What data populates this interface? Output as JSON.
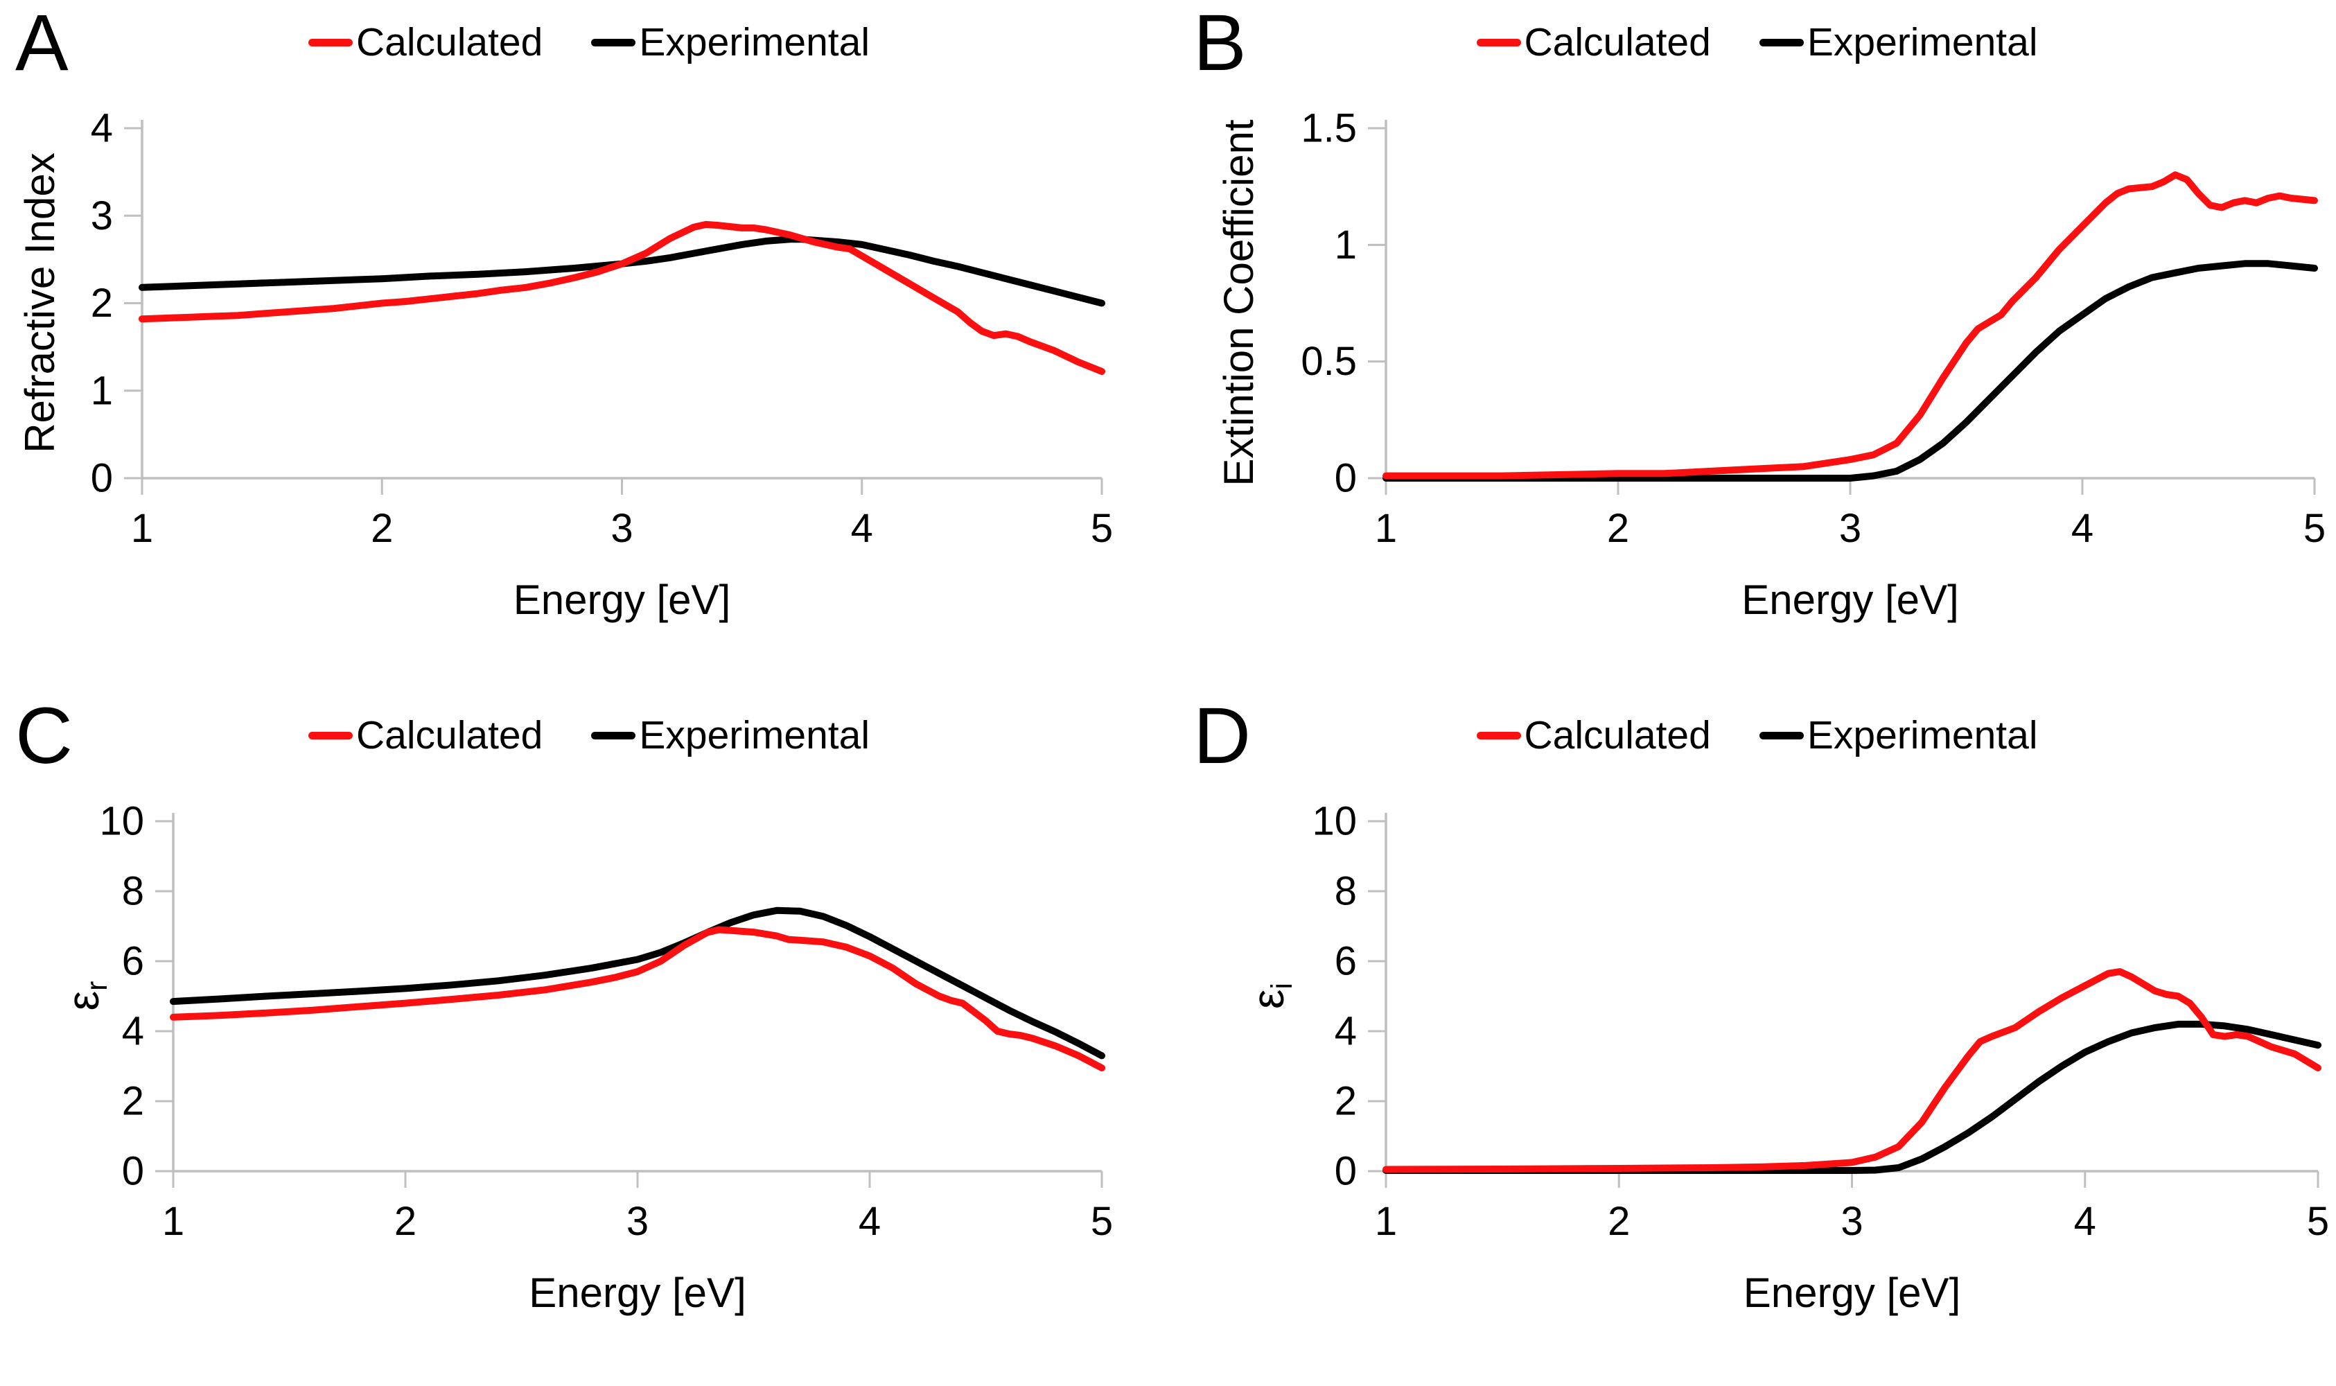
{
  "figure": {
    "legend": {
      "calculated": "Calculated",
      "experimental": "Experimental"
    },
    "colors": {
      "calculated": "#FA1010",
      "experimental": "#000000",
      "axis": "#BFBFBF",
      "text": "#000000"
    }
  },
  "chart_data": [
    {
      "panel_label": "A",
      "type": "line",
      "title": "",
      "xlabel": "Energy [eV]",
      "ylabel": "Refractive Index",
      "ylabel_sub": "",
      "xlim": [
        1,
        5
      ],
      "ylim": [
        0,
        4
      ],
      "xticks": [
        1,
        2,
        3,
        4,
        5
      ],
      "xtick_labels": [
        "1",
        "2",
        "3",
        "4",
        "5"
      ],
      "yticks": [
        0,
        1,
        2,
        3,
        4
      ],
      "ytick_labels": [
        "0",
        "1",
        "2",
        "3",
        "4"
      ],
      "grid": false,
      "legend_position": "top",
      "series": [
        {
          "name": "Calculated",
          "color": "#FA1010",
          "x": [
            1.0,
            1.1,
            1.2,
            1.3,
            1.4,
            1.5,
            1.6,
            1.7,
            1.8,
            1.9,
            2.0,
            2.1,
            2.2,
            2.3,
            2.4,
            2.5,
            2.6,
            2.7,
            2.8,
            2.9,
            3.0,
            3.1,
            3.2,
            3.3,
            3.35,
            3.4,
            3.5,
            3.55,
            3.6,
            3.7,
            3.8,
            3.9,
            3.95,
            4.0,
            4.1,
            4.2,
            4.3,
            4.4,
            4.45,
            4.5,
            4.55,
            4.6,
            4.65,
            4.7,
            4.8,
            4.9,
            5.0
          ],
          "y": [
            1.82,
            1.83,
            1.84,
            1.85,
            1.86,
            1.88,
            1.9,
            1.92,
            1.94,
            1.97,
            2.0,
            2.02,
            2.05,
            2.08,
            2.11,
            2.15,
            2.18,
            2.23,
            2.29,
            2.36,
            2.45,
            2.57,
            2.74,
            2.87,
            2.9,
            2.89,
            2.86,
            2.86,
            2.84,
            2.78,
            2.7,
            2.64,
            2.62,
            2.54,
            2.38,
            2.22,
            2.06,
            1.9,
            1.78,
            1.68,
            1.63,
            1.65,
            1.62,
            1.56,
            1.46,
            1.33,
            1.22
          ]
        },
        {
          "name": "Experimental",
          "color": "#000000",
          "x": [
            1.0,
            1.2,
            1.4,
            1.6,
            1.8,
            2.0,
            2.2,
            2.4,
            2.6,
            2.8,
            3.0,
            3.1,
            3.2,
            3.3,
            3.4,
            3.5,
            3.6,
            3.7,
            3.75,
            3.8,
            3.9,
            4.0,
            4.1,
            4.2,
            4.3,
            4.4,
            4.5,
            4.6,
            4.7,
            4.8,
            4.9,
            5.0
          ],
          "y": [
            2.18,
            2.2,
            2.22,
            2.24,
            2.26,
            2.28,
            2.31,
            2.33,
            2.36,
            2.4,
            2.45,
            2.48,
            2.52,
            2.57,
            2.62,
            2.67,
            2.71,
            2.73,
            2.73,
            2.72,
            2.7,
            2.67,
            2.61,
            2.55,
            2.48,
            2.42,
            2.35,
            2.28,
            2.21,
            2.14,
            2.07,
            2.0
          ]
        }
      ]
    },
    {
      "panel_label": "B",
      "type": "line",
      "title": "",
      "xlabel": "Energy [eV]",
      "ylabel": "Extintion Coefficient",
      "ylabel_sub": "",
      "xlim": [
        1,
        5
      ],
      "ylim": [
        0,
        1.5
      ],
      "xticks": [
        1,
        2,
        3,
        4,
        5
      ],
      "xtick_labels": [
        "1",
        "2",
        "3",
        "4",
        "5"
      ],
      "yticks": [
        0,
        0.5,
        1,
        1.5
      ],
      "ytick_labels": [
        "0",
        "0.5",
        "1",
        "1.5"
      ],
      "grid": false,
      "legend_position": "top",
      "series": [
        {
          "name": "Calculated",
          "color": "#FA1010",
          "x": [
            1.0,
            1.5,
            2.0,
            2.2,
            2.4,
            2.6,
            2.8,
            3.0,
            3.1,
            3.2,
            3.3,
            3.4,
            3.5,
            3.55,
            3.6,
            3.65,
            3.7,
            3.8,
            3.9,
            4.0,
            4.1,
            4.15,
            4.2,
            4.3,
            4.35,
            4.4,
            4.45,
            4.5,
            4.55,
            4.6,
            4.65,
            4.7,
            4.75,
            4.8,
            4.85,
            4.9,
            5.0
          ],
          "y": [
            0.01,
            0.01,
            0.02,
            0.02,
            0.03,
            0.04,
            0.05,
            0.08,
            0.1,
            0.15,
            0.27,
            0.43,
            0.58,
            0.64,
            0.67,
            0.7,
            0.76,
            0.86,
            0.98,
            1.08,
            1.18,
            1.22,
            1.24,
            1.25,
            1.27,
            1.3,
            1.28,
            1.22,
            1.17,
            1.16,
            1.18,
            1.19,
            1.18,
            1.2,
            1.21,
            1.2,
            1.19
          ]
        },
        {
          "name": "Experimental",
          "color": "#000000",
          "x": [
            1.0,
            1.5,
            2.0,
            2.5,
            2.8,
            3.0,
            3.1,
            3.2,
            3.3,
            3.4,
            3.5,
            3.6,
            3.7,
            3.8,
            3.9,
            4.0,
            4.1,
            4.2,
            4.3,
            4.4,
            4.5,
            4.6,
            4.7,
            4.8,
            4.9,
            5.0
          ],
          "y": [
            0.0,
            0.0,
            0.0,
            0.0,
            0.0,
            0.0,
            0.01,
            0.03,
            0.08,
            0.15,
            0.24,
            0.34,
            0.44,
            0.54,
            0.63,
            0.7,
            0.77,
            0.82,
            0.86,
            0.88,
            0.9,
            0.91,
            0.92,
            0.92,
            0.91,
            0.9
          ]
        }
      ]
    },
    {
      "panel_label": "C",
      "type": "line",
      "title": "",
      "xlabel": "Energy [eV]",
      "ylabel": "ε",
      "ylabel_sub": "r",
      "xlim": [
        1,
        5
      ],
      "ylim": [
        0,
        10
      ],
      "xticks": [
        1,
        2,
        3,
        4,
        5
      ],
      "xtick_labels": [
        "1",
        "2",
        "3",
        "4",
        "5"
      ],
      "yticks": [
        0,
        2,
        4,
        6,
        8,
        10
      ],
      "ytick_labels": [
        "0",
        "2",
        "4",
        "6",
        "8",
        "10"
      ],
      "grid": false,
      "legend_position": "top",
      "series": [
        {
          "name": "Calculated",
          "color": "#FA1010",
          "x": [
            1.0,
            1.2,
            1.4,
            1.6,
            1.8,
            2.0,
            2.2,
            2.4,
            2.6,
            2.8,
            2.9,
            3.0,
            3.1,
            3.2,
            3.3,
            3.35,
            3.4,
            3.5,
            3.6,
            3.65,
            3.7,
            3.8,
            3.9,
            4.0,
            4.1,
            4.2,
            4.3,
            4.35,
            4.4,
            4.5,
            4.55,
            4.6,
            4.65,
            4.7,
            4.8,
            4.9,
            5.0
          ],
          "y": [
            4.4,
            4.45,
            4.52,
            4.6,
            4.7,
            4.8,
            4.91,
            5.03,
            5.18,
            5.4,
            5.53,
            5.7,
            6.0,
            6.45,
            6.82,
            6.9,
            6.88,
            6.83,
            6.72,
            6.62,
            6.6,
            6.55,
            6.4,
            6.15,
            5.8,
            5.35,
            5.0,
            4.88,
            4.8,
            4.3,
            4.0,
            3.92,
            3.88,
            3.8,
            3.58,
            3.3,
            2.95
          ]
        },
        {
          "name": "Experimental",
          "color": "#000000",
          "x": [
            1.0,
            1.2,
            1.4,
            1.6,
            1.8,
            2.0,
            2.2,
            2.4,
            2.6,
            2.8,
            3.0,
            3.1,
            3.2,
            3.3,
            3.4,
            3.5,
            3.6,
            3.7,
            3.8,
            3.9,
            4.0,
            4.1,
            4.2,
            4.3,
            4.4,
            4.5,
            4.6,
            4.7,
            4.8,
            4.9,
            5.0
          ],
          "y": [
            4.85,
            4.92,
            5.0,
            5.07,
            5.14,
            5.22,
            5.32,
            5.44,
            5.6,
            5.8,
            6.05,
            6.25,
            6.52,
            6.82,
            7.1,
            7.32,
            7.45,
            7.43,
            7.28,
            7.02,
            6.7,
            6.35,
            6.0,
            5.65,
            5.3,
            4.95,
            4.6,
            4.28,
            3.98,
            3.65,
            3.3
          ]
        }
      ]
    },
    {
      "panel_label": "D",
      "type": "line",
      "title": "",
      "xlabel": "Energy [eV]",
      "ylabel": "ε",
      "ylabel_sub": "i",
      "xlim": [
        1,
        5
      ],
      "ylim": [
        0,
        10
      ],
      "xticks": [
        1,
        2,
        3,
        4,
        5
      ],
      "xtick_labels": [
        "1",
        "2",
        "3",
        "4",
        "5"
      ],
      "yticks": [
        0,
        2,
        4,
        6,
        8,
        10
      ],
      "ytick_labels": [
        "0",
        "2",
        "4",
        "6",
        "8",
        "10"
      ],
      "grid": false,
      "legend_position": "top",
      "series": [
        {
          "name": "Calculated",
          "color": "#FA1010",
          "x": [
            1.0,
            1.5,
            2.0,
            2.4,
            2.6,
            2.8,
            3.0,
            3.1,
            3.2,
            3.3,
            3.4,
            3.5,
            3.55,
            3.6,
            3.7,
            3.8,
            3.9,
            4.0,
            4.1,
            4.15,
            4.2,
            4.3,
            4.35,
            4.4,
            4.45,
            4.5,
            4.55,
            4.6,
            4.65,
            4.7,
            4.8,
            4.9,
            5.0
          ],
          "y": [
            0.05,
            0.06,
            0.08,
            0.1,
            0.12,
            0.16,
            0.25,
            0.4,
            0.7,
            1.4,
            2.4,
            3.3,
            3.7,
            3.85,
            4.1,
            4.55,
            4.95,
            5.3,
            5.65,
            5.7,
            5.55,
            5.15,
            5.05,
            5.0,
            4.8,
            4.4,
            3.9,
            3.85,
            3.9,
            3.85,
            3.55,
            3.35,
            2.95
          ]
        },
        {
          "name": "Experimental",
          "color": "#000000",
          "x": [
            1.0,
            1.5,
            2.0,
            2.5,
            2.8,
            3.0,
            3.1,
            3.2,
            3.3,
            3.4,
            3.5,
            3.6,
            3.7,
            3.8,
            3.9,
            4.0,
            4.1,
            4.2,
            4.3,
            4.4,
            4.5,
            4.6,
            4.7,
            4.8,
            4.9,
            5.0
          ],
          "y": [
            0.02,
            0.02,
            0.02,
            0.02,
            0.02,
            0.02,
            0.03,
            0.1,
            0.35,
            0.7,
            1.1,
            1.55,
            2.05,
            2.55,
            3.0,
            3.4,
            3.7,
            3.95,
            4.1,
            4.2,
            4.2,
            4.15,
            4.05,
            3.9,
            3.75,
            3.6
          ]
        }
      ]
    }
  ]
}
